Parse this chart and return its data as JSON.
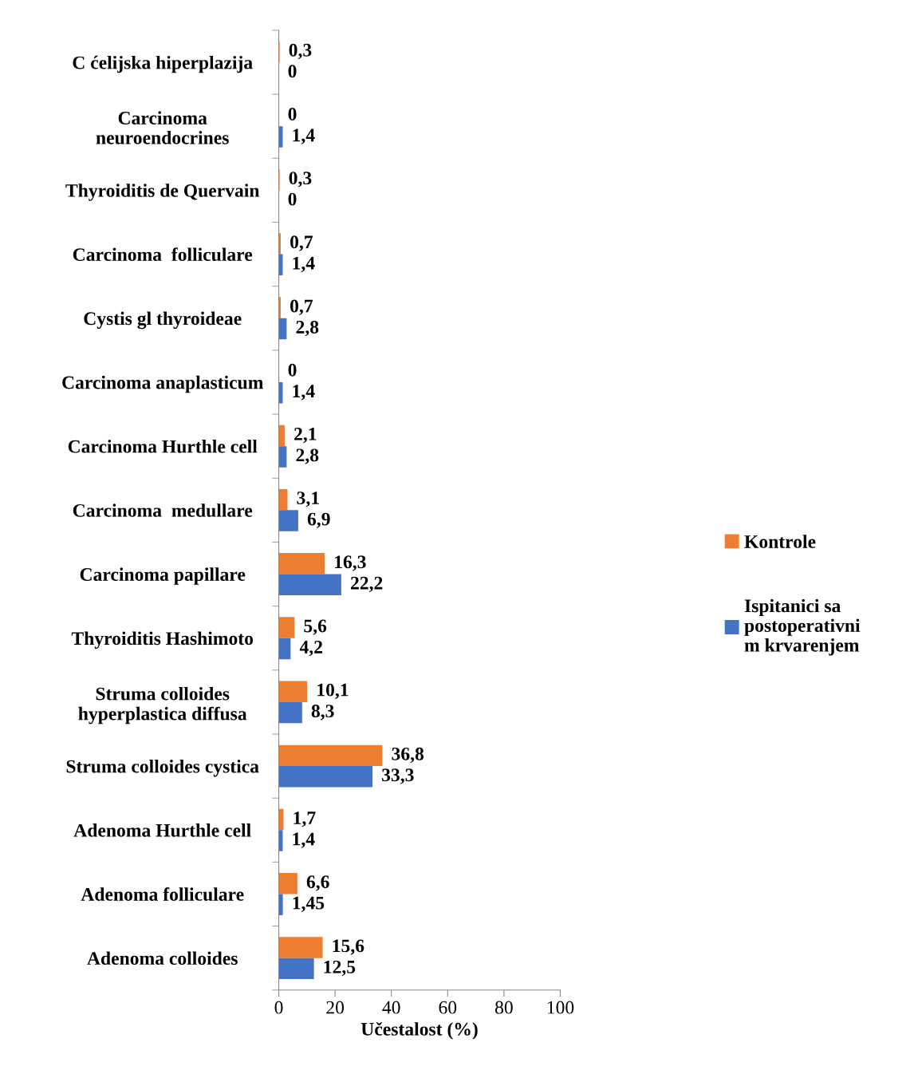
{
  "chart_data": {
    "type": "bar",
    "orientation": "horizontal",
    "xlabel": "Učestalost (%)",
    "categories": [
      "C ćelijska hiperplazija",
      "Carcinoma\nneuroendocrines",
      "Thyroiditis de Quervain",
      "Carcinoma  folliculare",
      "Cystis gl thyroideae",
      "Carcinoma anaplasticum",
      "Carcinoma Hurthle cell",
      "Carcinoma  medullare",
      "Carcinoma papillare",
      "Thyroiditis Hashimoto",
      "Struma colloides\nhyperplastica diffusa",
      "Struma colloides cystica",
      "Adenoma Hurthle cell",
      "Adenoma folliculare",
      "Adenoma colloides"
    ],
    "series": [
      {
        "name": "Kontrole",
        "color": "#ed7d31",
        "values": [
          0.3,
          0,
          0.3,
          0.7,
          0.7,
          0,
          2.1,
          3.1,
          16.3,
          5.6,
          10.1,
          36.8,
          1.7,
          6.6,
          15.6
        ],
        "value_labels": [
          "0,3",
          "0",
          "0,3",
          "0,7",
          "0,7",
          "0",
          "2,1",
          "3,1",
          "16,3",
          "5,6",
          "10,1",
          "36,8",
          "1,7",
          "6,6",
          "15,6"
        ]
      },
      {
        "name": "Ispitanici sa\npostoperativni\nm krvarenjem",
        "color": "#4472c4",
        "values": [
          0,
          1.4,
          0,
          1.4,
          2.8,
          1.4,
          2.8,
          6.9,
          22.2,
          4.2,
          8.3,
          33.3,
          1.4,
          1.45,
          12.5
        ],
        "value_labels": [
          "0",
          "1,4",
          "0",
          "1,4",
          "2,8",
          "1,4",
          "2,8",
          "6,9",
          "22,2",
          "4,2",
          "8,3",
          "33,3",
          "1,4",
          "1,45",
          "12,5"
        ]
      }
    ],
    "xlim": [
      0,
      100
    ],
    "xticks": [
      0,
      20,
      40,
      60,
      80,
      100
    ],
    "grid": false,
    "legend": "right"
  }
}
